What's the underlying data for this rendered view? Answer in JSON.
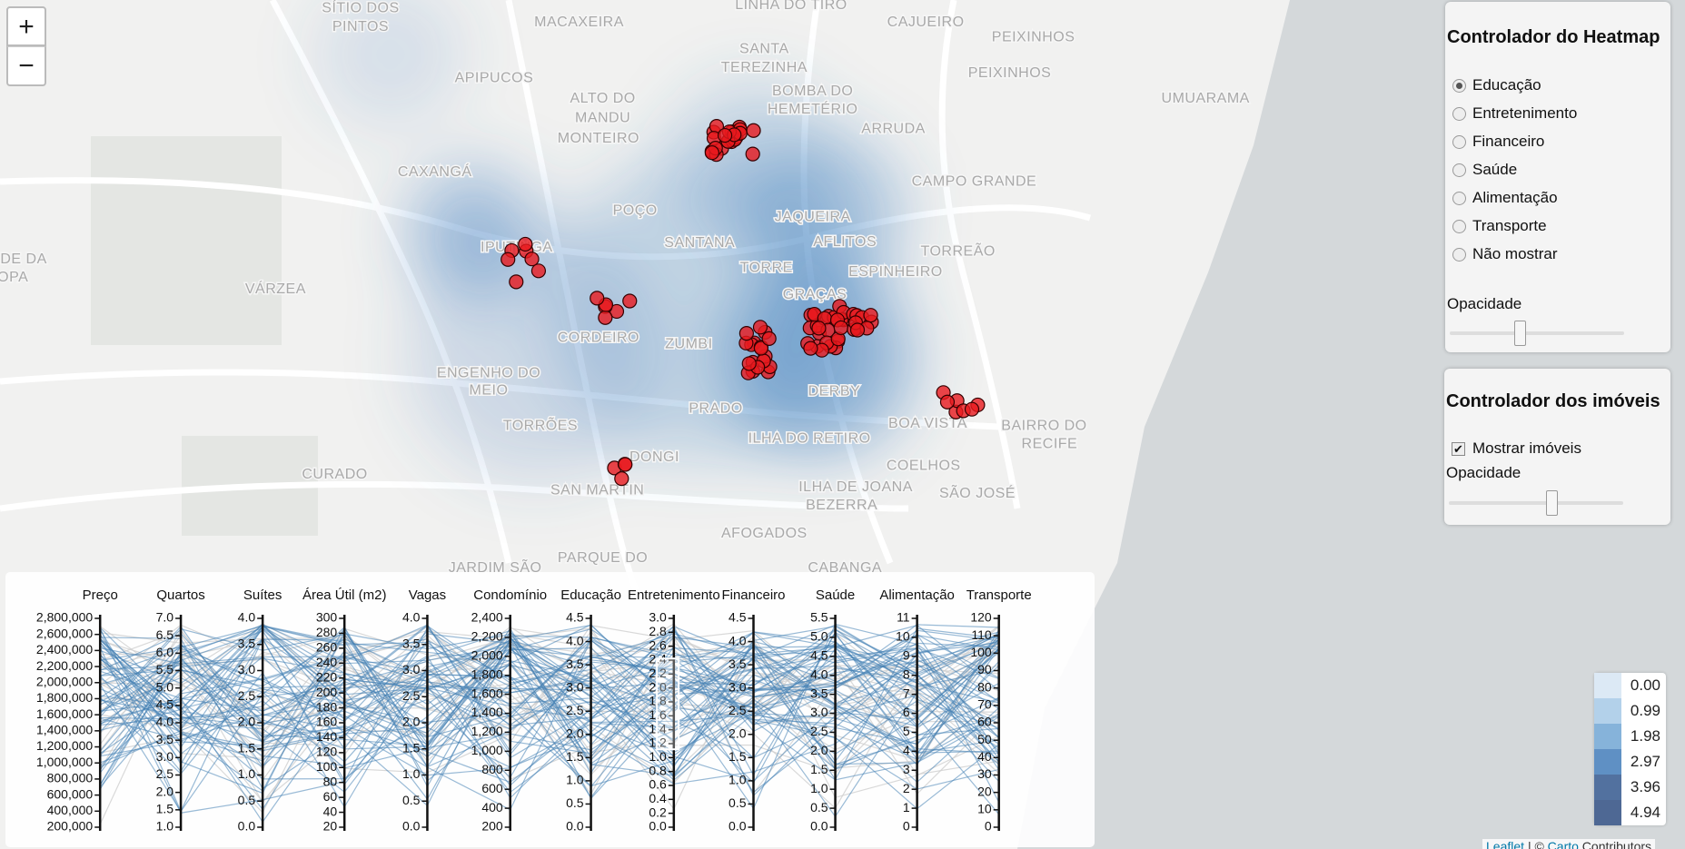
{
  "zoom": {
    "in": "+",
    "out": "−"
  },
  "map_labels": [
    "SÍTIO DOS",
    "PINTOS",
    "MACAXEIRA",
    "LINHA DO TIRO",
    "CAJUEIRO",
    "PEIXINHOS",
    "PEIXINHOS",
    "APIPUCOS",
    "SANTA",
    "TEREZINHA",
    "BOMBA DO",
    "HEMETÉRIO",
    "ALTO DO",
    "MANDU",
    "MONTEIRO",
    "ARRUDA",
    "UMUARAMA",
    "CAXANGÁ",
    "POÇO",
    "CAMPO GRANDE",
    "JAQUEIRA",
    "SANTANA",
    "AFLITOS",
    "IPUTINGA",
    "TORREÃO",
    "TORRE",
    "ESPINHEIRO",
    "DE DA",
    "OPA",
    "VÁRZEA",
    "GRAÇAS",
    "CORDEIRO",
    "ZUMBI",
    "ENGENHO DO",
    "MEIO",
    "DERBY",
    "PRADO",
    "TORRÕES",
    "BOA VISTA",
    "BAIRRO DO",
    "RECIFE",
    "ILHA DO RETIRO",
    "CURADO",
    "COELHOS",
    "SÃO JOSÉ",
    "DONGI",
    "SAN MARTIN",
    "ILHA DE JOANA",
    "BEZERRA",
    "AFOGADOS",
    "PARQUE DO",
    "JARDIM SÃO",
    "CABANGA"
  ],
  "heatmap_control": {
    "title": "Controlador do Heatmap",
    "options": [
      "Educação",
      "Entretenimento",
      "Financeiro",
      "Saúde",
      "Alimentação",
      "Transporte",
      "Não mostrar"
    ],
    "selected_option": 0,
    "opacity_label": "Opacidade"
  },
  "property_control": {
    "title": "Controlador dos imóveis",
    "show_label": "Mostrar imóveis",
    "checked": true,
    "opacity_label": "Opacidade"
  },
  "parallel_axes": [
    {
      "name": "Preço",
      "ticks": [
        "2,800,000",
        "2,600,000",
        "2,400,000",
        "2,200,000",
        "2,000,000",
        "1,800,000",
        "1,600,000",
        "1,400,000",
        "1,200,000",
        "1,000,000",
        "800,000",
        "600,000",
        "400,000",
        "200,000"
      ]
    },
    {
      "name": "Quartos",
      "ticks": [
        "7.0",
        "6.5",
        "6.0",
        "5.5",
        "5.0",
        "4.5",
        "4.0",
        "3.5",
        "3.0",
        "2.5",
        "2.0",
        "1.5",
        "1.0"
      ]
    },
    {
      "name": "Suítes",
      "ticks": [
        "4.0",
        "3.5",
        "3.0",
        "2.5",
        "2.0",
        "1.5",
        "1.0",
        "0.5",
        "0.0"
      ]
    },
    {
      "name": "Área Útil (m2)",
      "ticks": [
        "300",
        "280",
        "260",
        "240",
        "220",
        "200",
        "180",
        "160",
        "140",
        "120",
        "100",
        "80",
        "60",
        "40",
        "20"
      ]
    },
    {
      "name": "Vagas",
      "ticks": [
        "4.0",
        "3.5",
        "3.0",
        "2.5",
        "2.0",
        "1.5",
        "1.0",
        "0.5",
        "0.0"
      ]
    },
    {
      "name": "Condomínio",
      "ticks": [
        "2,400",
        "2,200",
        "2,000",
        "1,800",
        "1,600",
        "1,400",
        "1,200",
        "1,000",
        "800",
        "600",
        "400",
        "200"
      ]
    },
    {
      "name": "Educação",
      "ticks": [
        "4.5",
        "4.0",
        "3.5",
        "3.0",
        "2.5",
        "2.0",
        "1.5",
        "1.0",
        "0.5",
        "0.0"
      ]
    },
    {
      "name": "Entretenimento",
      "ticks": [
        "3.0",
        "2.8",
        "2.6",
        "2.4",
        "2.2",
        "2.0",
        "1.8",
        "1.6",
        "1.4",
        "1.2",
        "1.0",
        "0.8",
        "0.6",
        "0.4",
        "0.2",
        "0.0"
      ]
    },
    {
      "name": "Financeiro",
      "ticks": [
        "4.5",
        "4.0",
        "3.5",
        "3.0",
        "2.5",
        "2.0",
        "1.5",
        "1.0",
        "0.5",
        "0.0"
      ]
    },
    {
      "name": "Saúde",
      "ticks": [
        "5.5",
        "5.0",
        "4.5",
        "4.0",
        "3.5",
        "3.0",
        "2.5",
        "2.0",
        "1.5",
        "1.0",
        "0.5",
        "0.0"
      ]
    },
    {
      "name": "Alimentação",
      "ticks": [
        "11",
        "10",
        "9",
        "8",
        "7",
        "6",
        "5",
        "4",
        "3",
        "2",
        "1",
        "0"
      ]
    },
    {
      "name": "Transporte",
      "ticks": [
        "120",
        "110",
        "100",
        "90",
        "80",
        "70",
        "60",
        "50",
        "40",
        "30",
        "20",
        "10",
        "0"
      ]
    }
  ],
  "legend": [
    {
      "label": "0.00",
      "color": "#dce9f5"
    },
    {
      "label": "0.99",
      "color": "#b3d1ea"
    },
    {
      "label": "1.98",
      "color": "#86b3da"
    },
    {
      "label": "2.97",
      "color": "#5f90c4"
    },
    {
      "label": "3.96",
      "color": "#52719f"
    },
    {
      "label": "4.94",
      "color": "#4e6894"
    }
  ],
  "attribution": {
    "leaflet": "Leaflet",
    "separator": "| ©",
    "carto": "Carto",
    "rest": "Contributors"
  }
}
